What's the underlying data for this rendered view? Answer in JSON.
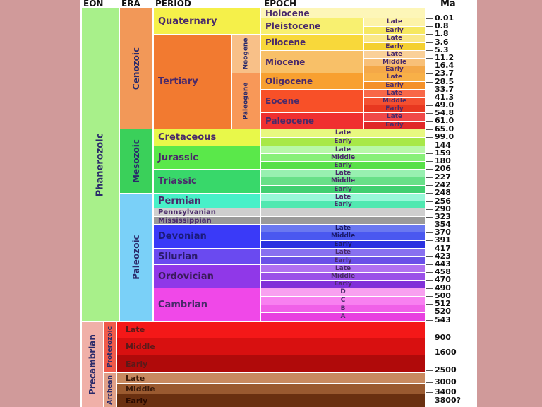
{
  "headers": {
    "eon": "EON",
    "era": "ERA",
    "period": "PERIOD",
    "epoch": "EPOCH",
    "ma": "Ma"
  },
  "eons": {
    "phanerozoic": "Phanerozoic",
    "precambrian": "Precambrian"
  },
  "eras": {
    "cenozoic": "Cenozoic",
    "mesozoic": "Mesozoic",
    "paleozoic": "Paleozoic",
    "proterozoic": "Proterozoic",
    "archean": "Archean"
  },
  "subperiods": {
    "neogene": "Neogene",
    "paleogene": "Paleogene"
  },
  "periods": {
    "quaternary": "Quaternary",
    "tertiary": "Tertiary",
    "cretaceous": "Cretaceous",
    "jurassic": "Jurassic",
    "triassic": "Triassic",
    "permian": "Permian",
    "pennsylvanian": "Pennsylvanian",
    "mississippian": "Mississippian",
    "devonian": "Devonian",
    "silurian": "Silurian",
    "ordovician": "Ordovician",
    "cambrian": "Cambrian"
  },
  "epochs": {
    "holocene": "Holocene",
    "pleistocene": "Pleistocene",
    "pliocene": "Pliocene",
    "miocene": "Miocene",
    "oligocene": "Oligocene",
    "eocene": "Eocene",
    "paleocene": "Paleocene"
  },
  "subdivisions": {
    "late": "Late",
    "middle": "Middle",
    "early": "Early",
    "d": "D",
    "c": "C",
    "b": "B",
    "a": "A"
  },
  "ma_labels": [
    "0.01",
    "0.8",
    "1.8",
    "3.6",
    "5.3",
    "11.2",
    "16.4",
    "23.7",
    "28.5",
    "33.7",
    "41.3",
    "49.0",
    "54.8",
    "61.0",
    "65.0",
    "99.0",
    "144",
    "159",
    "180",
    "206",
    "227",
    "242",
    "248",
    "256",
    "290",
    "323",
    "354",
    "370",
    "391",
    "417",
    "423",
    "443",
    "458",
    "470",
    "490",
    "500",
    "512",
    "520",
    "543",
    "900",
    "1600",
    "2500",
    "3000",
    "3400",
    "3800?"
  ]
}
